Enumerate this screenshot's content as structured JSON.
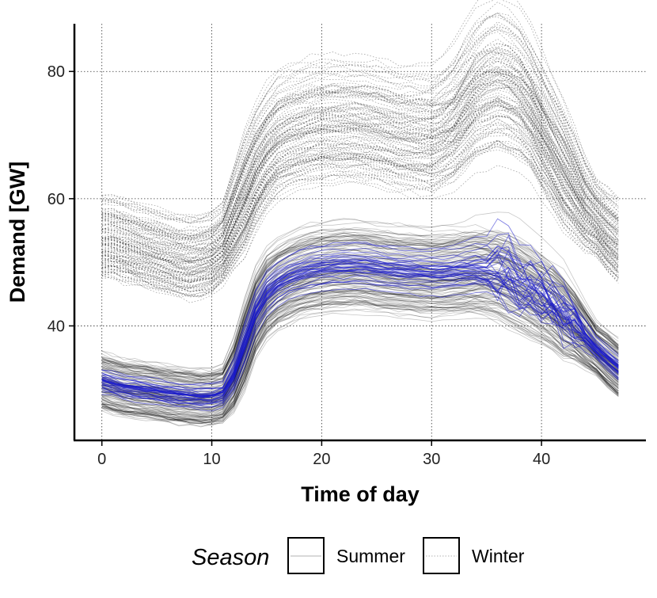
{
  "chart_data": {
    "type": "line",
    "title": "",
    "xlabel": "Time of day",
    "ylabel": "Demand [GW]",
    "xlim": [
      -2.5,
      49.5
    ],
    "ylim": [
      22,
      87.5
    ],
    "x_ticks": [
      0,
      10,
      20,
      30,
      40
    ],
    "x_tick_labels": [
      "0",
      "10",
      "20",
      "30",
      "40"
    ],
    "y_ticks": [
      40,
      60,
      80
    ],
    "y_tick_labels": [
      "40",
      "60",
      "80"
    ],
    "grid": "dotted",
    "legend_placement": "bottom",
    "legend": {
      "title": "Season",
      "items": [
        {
          "label": "Summer",
          "style": "solid"
        },
        {
          "label": "Winter",
          "style": "dotted"
        }
      ]
    },
    "colors": {
      "base_lines": "#000000",
      "highlight_lines": "#1a1acc"
    },
    "x": [
      0,
      1,
      2,
      3,
      4,
      5,
      6,
      7,
      8,
      9,
      10,
      11,
      12,
      13,
      14,
      15,
      16,
      17,
      18,
      19,
      20,
      21,
      22,
      23,
      24,
      25,
      26,
      27,
      28,
      29,
      30,
      31,
      32,
      33,
      34,
      35,
      36,
      37,
      38,
      39,
      40,
      41,
      42,
      43,
      44,
      45,
      46,
      47
    ],
    "profiles": {
      "winter_typical": [
        54,
        54,
        53.5,
        53,
        52.5,
        52,
        51.5,
        51,
        50.8,
        51,
        51.5,
        53,
        57,
        61,
        65,
        68,
        70,
        71,
        71.5,
        72,
        72.3,
        72.5,
        72.5,
        72.5,
        72.2,
        72,
        71.5,
        71,
        70.8,
        70.5,
        70.3,
        71,
        72,
        74,
        76,
        77,
        77.5,
        77,
        76,
        74,
        71,
        68,
        65,
        62,
        59,
        57,
        55,
        53.5
      ],
      "summer_typical": [
        32,
        31.5,
        31,
        30.8,
        30.6,
        30.3,
        30,
        29.8,
        29.6,
        29.5,
        29.5,
        30,
        33,
        38,
        43,
        46,
        47.5,
        48.5,
        49.2,
        49.7,
        50,
        50.2,
        50.3,
        50.4,
        50.3,
        50,
        49.8,
        49.6,
        49.5,
        49.4,
        49.3,
        49.3,
        49.4,
        49.5,
        49.5,
        49.2,
        48.8,
        48,
        47,
        46,
        45,
        44,
        42.5,
        41,
        39,
        37,
        35.5,
        34
      ]
    },
    "series_groups": [
      {
        "season": "Winter",
        "count": 120,
        "level_range": [
          -9,
          9
        ],
        "evening_peak_extra_range": [
          -4,
          7
        ],
        "color": "#000000",
        "dash": "dotted"
      },
      {
        "season": "Summer",
        "count": 140,
        "level_range": [
          -7,
          5
        ],
        "color": "#000000",
        "dash": "solid"
      },
      {
        "season": "Summer",
        "count": 35,
        "level_range": [
          -3,
          2
        ],
        "color": "#1a1acc",
        "dash": "solid",
        "highlighted": true
      }
    ]
  }
}
